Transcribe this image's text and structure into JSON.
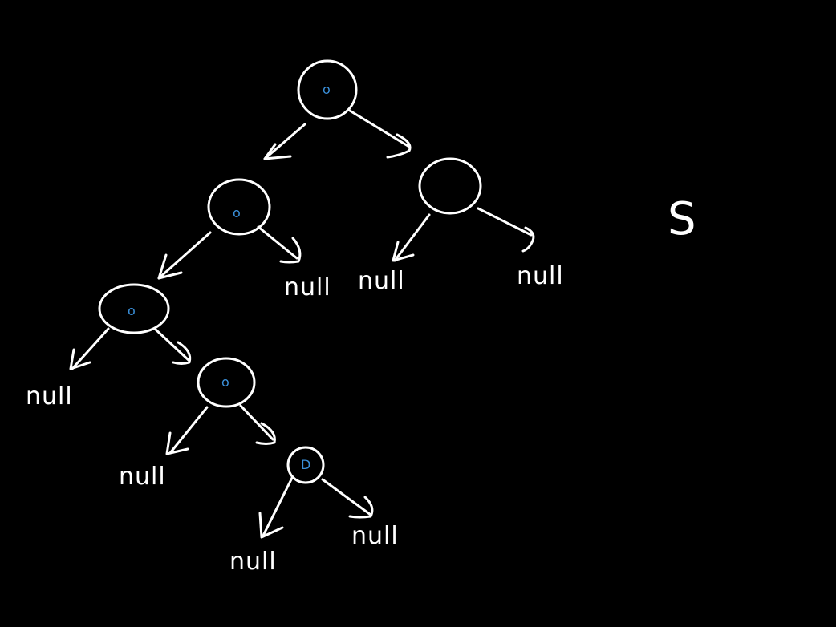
{
  "colors": {
    "background": "#000000",
    "stroke": "#ffffff",
    "node_mark": "#3a8fd9"
  },
  "node_marks": {
    "root": "o",
    "left": "o",
    "left_left": "o",
    "left_left_right": "o",
    "deepest": "D"
  },
  "null_labels": {
    "left_right": "null",
    "right_left": "null",
    "right_right": "null",
    "left_left_left": "null",
    "left_left_right_left": "null",
    "deepest_left": "null",
    "deepest_right": "null"
  },
  "side_mark": "S"
}
